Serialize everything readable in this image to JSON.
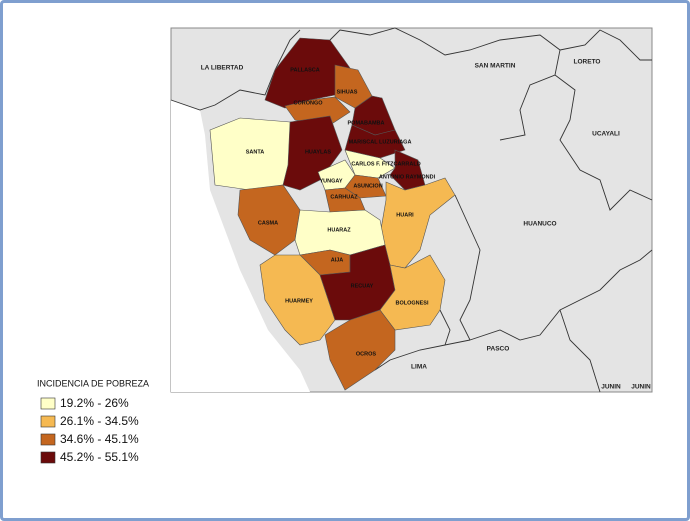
{
  "map": {
    "neighbors": [
      "LA LIBERTAD",
      "SAN MARTIN",
      "LORETO",
      "UCAYALI",
      "HUANUCO",
      "PASCO",
      "LIMA",
      "JUNIN",
      "JUNIN"
    ],
    "provinces": [
      {
        "name": "PALLASCA",
        "class": 3
      },
      {
        "name": "SIHUAS",
        "class": 2
      },
      {
        "name": "CORONGO",
        "class": 2
      },
      {
        "name": "POMABAMBA",
        "class": 3
      },
      {
        "name": "HUAYLAS",
        "class": 3
      },
      {
        "name": "MARISCAL LUZURIAGA",
        "class": 3
      },
      {
        "name": "SANTA",
        "class": 0
      },
      {
        "name": "CARLOS F. FITZCARRALD",
        "class": 0
      },
      {
        "name": "ANTONIO RAYMONDI",
        "class": 3
      },
      {
        "name": "YUNGAY",
        "class": 0
      },
      {
        "name": "ASUNCION",
        "class": 2
      },
      {
        "name": "CARHUAZ",
        "class": 2
      },
      {
        "name": "HUARI",
        "class": 1
      },
      {
        "name": "CASMA",
        "class": 2
      },
      {
        "name": "HUARAZ",
        "class": 0
      },
      {
        "name": "AIJA",
        "class": 2
      },
      {
        "name": "HUARMEY",
        "class": 1
      },
      {
        "name": "RECUAY",
        "class": 3
      },
      {
        "name": "BOLOGNESI",
        "class": 1
      },
      {
        "name": "OCROS",
        "class": 2
      }
    ]
  },
  "legend": {
    "title": "INCIDENCIA DE POBREZA",
    "items": [
      {
        "label": "19.2% - 26%",
        "color": "#ffffc8"
      },
      {
        "label": "26.1% - 34.5%",
        "color": "#f5b952"
      },
      {
        "label": "34.6% - 45.1%",
        "color": "#c4661f"
      },
      {
        "label": "45.2% - 55.1%",
        "color": "#6b0b0b"
      }
    ]
  }
}
